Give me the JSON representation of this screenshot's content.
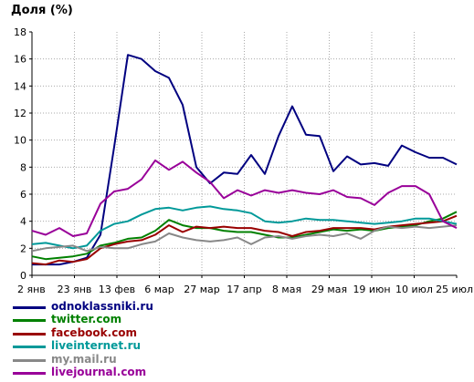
{
  "chart_data": {
    "type": "line",
    "title": "Доля (%)",
    "ylim": [
      0,
      18
    ],
    "yticks": [
      0,
      2,
      4,
      6,
      8,
      10,
      12,
      14,
      16,
      18
    ],
    "xticklabels": [
      "2 янв",
      "23 янв",
      "13 фев",
      "6 мар",
      "27 мар",
      "17 апр",
      "8 мая",
      "29 мая",
      "19 июн",
      "10 июл",
      "25 июл"
    ],
    "grid": true,
    "legend_position": "bottom-left",
    "series": [
      {
        "name": "odnoklassniki.ru",
        "color": "#000080",
        "values": [
          0.8,
          0.8,
          0.8,
          1.0,
          1.3,
          3.0,
          9.5,
          16.3,
          16.0,
          15.1,
          14.6,
          12.6,
          8.0,
          6.8,
          7.6,
          7.5,
          8.9,
          7.5,
          10.3,
          12.5,
          10.4,
          10.3,
          7.7,
          8.8,
          8.2,
          8.3,
          8.1,
          9.6,
          9.1,
          8.7,
          8.7,
          8.2
        ]
      },
      {
        "name": "twitter.com",
        "color": "#008000",
        "values": [
          1.4,
          1.2,
          1.3,
          1.4,
          1.6,
          2.2,
          2.4,
          2.7,
          2.8,
          3.3,
          4.1,
          3.7,
          3.5,
          3.5,
          3.3,
          3.2,
          3.2,
          3.0,
          2.8,
          2.8,
          3.0,
          3.2,
          3.4,
          3.3,
          3.4,
          3.3,
          3.5,
          3.6,
          3.7,
          4.0,
          4.2,
          4.7
        ]
      },
      {
        "name": "facebook.com",
        "color": "#990000",
        "values": [
          0.9,
          0.8,
          1.1,
          1.0,
          1.2,
          2.0,
          2.3,
          2.5,
          2.6,
          3.0,
          3.7,
          3.2,
          3.6,
          3.5,
          3.6,
          3.5,
          3.5,
          3.3,
          3.2,
          2.9,
          3.2,
          3.3,
          3.5,
          3.5,
          3.5,
          3.4,
          3.6,
          3.7,
          3.8,
          3.9,
          4.0,
          4.4
        ]
      },
      {
        "name": "liveinternet.ru",
        "color": "#009999",
        "values": [
          2.3,
          2.4,
          2.2,
          2.0,
          2.2,
          3.3,
          3.8,
          4.0,
          4.5,
          4.9,
          5.0,
          4.8,
          5.0,
          5.1,
          4.9,
          4.8,
          4.6,
          4.0,
          3.9,
          4.0,
          4.2,
          4.1,
          4.1,
          4.0,
          3.9,
          3.8,
          3.9,
          4.0,
          4.2,
          4.2,
          4.0,
          3.8
        ]
      },
      {
        "name": "my.mail.ru",
        "color": "#888888",
        "values": [
          1.8,
          2.0,
          2.1,
          2.2,
          1.8,
          2.1,
          2.0,
          2.0,
          2.3,
          2.5,
          3.1,
          2.8,
          2.6,
          2.5,
          2.6,
          2.8,
          2.3,
          2.8,
          2.9,
          2.7,
          2.9,
          3.0,
          2.9,
          3.1,
          2.7,
          3.3,
          3.6,
          3.5,
          3.6,
          3.5,
          3.6,
          3.7
        ]
      },
      {
        "name": "livejournal.com",
        "color": "#990099",
        "values": [
          3.3,
          3.0,
          3.5,
          2.9,
          3.1,
          5.3,
          6.2,
          6.4,
          7.1,
          8.5,
          7.8,
          8.4,
          7.6,
          6.9,
          5.7,
          6.3,
          5.9,
          6.3,
          6.1,
          6.3,
          6.1,
          6.0,
          6.3,
          5.8,
          5.7,
          5.2,
          6.1,
          6.6,
          6.6,
          6.0,
          4.0,
          3.5
        ]
      }
    ]
  }
}
